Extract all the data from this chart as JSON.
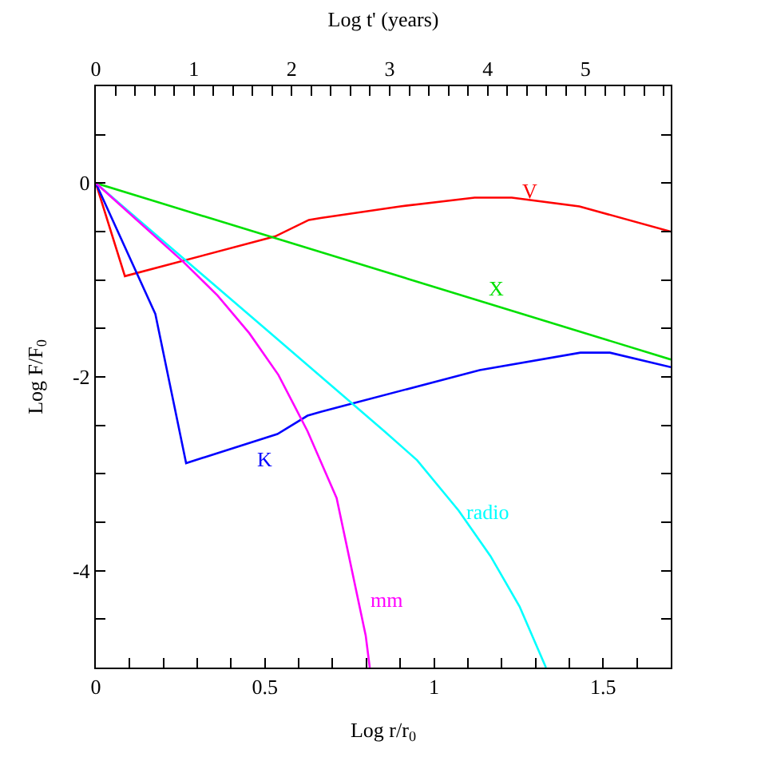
{
  "chart_data": {
    "type": "line",
    "xlabel": "Log r/r$_{0}$",
    "ylabel": "Log F/F$_{0}$",
    "x2label": "Log t' (years)",
    "xlim": [
      0,
      1.7
    ],
    "ylim": [
      -5,
      1
    ],
    "x2lim": [
      0,
      5.87
    ],
    "xticks": [
      0,
      {
        "value": 0.1,
        "label": null
      },
      {
        "value": 0.2,
        "label": null
      },
      {
        "value": 0.3,
        "label": null
      },
      {
        "value": 0.4,
        "label": null
      },
      0.5,
      {
        "value": 0.6,
        "label": null
      },
      {
        "value": 0.7,
        "label": null
      },
      {
        "value": 0.8,
        "label": null
      },
      {
        "value": 0.9,
        "label": null
      },
      1,
      {
        "value": 1.1,
        "label": null
      },
      {
        "value": 1.2,
        "label": null
      },
      {
        "value": 1.3,
        "label": null
      },
      {
        "value": 1.4,
        "label": null
      },
      1.5,
      {
        "value": 1.6,
        "label": null
      }
    ],
    "yticks": [
      {
        "value": -4.5,
        "label": null
      },
      -4,
      {
        "value": -3.5,
        "label": null
      },
      {
        "value": -3,
        "label": null
      },
      {
        "value": -2.5,
        "label": null
      },
      -2,
      {
        "value": -1.5,
        "label": null
      },
      {
        "value": -1,
        "label": null
      },
      {
        "value": -0.5,
        "label": null
      },
      0,
      {
        "value": 0.5,
        "label": null
      }
    ],
    "x2ticks": [
      0,
      {
        "value": 0.2,
        "label": null
      },
      {
        "value": 0.4,
        "label": null
      },
      {
        "value": 0.6,
        "label": null
      },
      {
        "value": 0.8,
        "label": null
      },
      1,
      {
        "value": 1.2,
        "label": null
      },
      {
        "value": 1.4,
        "label": null
      },
      {
        "value": 1.6,
        "label": null
      },
      {
        "value": 1.8,
        "label": null
      },
      2,
      {
        "value": 2.2,
        "label": null
      },
      {
        "value": 2.4,
        "label": null
      },
      {
        "value": 2.6,
        "label": null
      },
      {
        "value": 2.8,
        "label": null
      },
      3,
      {
        "value": 3.2,
        "label": null
      },
      {
        "value": 3.4,
        "label": null
      },
      {
        "value": 3.6,
        "label": null
      },
      {
        "value": 3.8,
        "label": null
      },
      4,
      {
        "value": 4.2,
        "label": null
      },
      {
        "value": 4.4,
        "label": null
      },
      {
        "value": 4.6,
        "label": null
      },
      {
        "value": 4.8,
        "label": null
      },
      5,
      {
        "value": 5.2,
        "label": null
      },
      {
        "value": 5.4,
        "label": null
      },
      {
        "value": 5.6,
        "label": null
      },
      {
        "value": 5.8,
        "label": null
      }
    ],
    "legend": false,
    "marker": "none",
    "line_style": "solid",
    "series": [
      {
        "name": "V",
        "color": "#ff0000",
        "x": [
          0,
          0.086,
          0.53,
          0.63,
          0.665,
          0.9,
          1.12,
          1.23,
          1.43,
          1.7
        ],
        "values": [
          0,
          -0.96,
          -0.55,
          -0.38,
          -0.36,
          -0.24,
          -0.15,
          -0.15,
          -0.24,
          -0.5
        ]
      },
      {
        "name": "X",
        "color": "#00e000",
        "x": [
          0,
          1.7
        ],
        "values": [
          0,
          -1.82
        ]
      },
      {
        "name": "K",
        "color": "#0000ff",
        "x": [
          0,
          0.176,
          0.267,
          0.537,
          0.626,
          0.665,
          1.135,
          1.433,
          1.52,
          1.7
        ],
        "values": [
          0,
          -1.35,
          -2.89,
          -2.59,
          -2.4,
          -2.36,
          -1.93,
          -1.75,
          -1.75,
          -1.9
        ]
      },
      {
        "name": "radio",
        "color": "#00ffff",
        "x": [
          0,
          0.5,
          0.853,
          0.95,
          1.073,
          1.167,
          1.253,
          1.331
        ],
        "values": [
          0,
          -1.5,
          -2.56,
          -2.86,
          -3.38,
          -3.85,
          -4.37,
          -5.0
        ]
      },
      {
        "name": "mm",
        "color": "#ff00ff",
        "x": [
          0,
          0.258,
          0.36,
          0.454,
          0.54,
          0.626,
          0.712,
          0.798,
          0.81
        ],
        "values": [
          0,
          -0.81,
          -1.16,
          -1.55,
          -1.98,
          -2.56,
          -3.25,
          -4.67,
          -5.0
        ]
      }
    ]
  }
}
